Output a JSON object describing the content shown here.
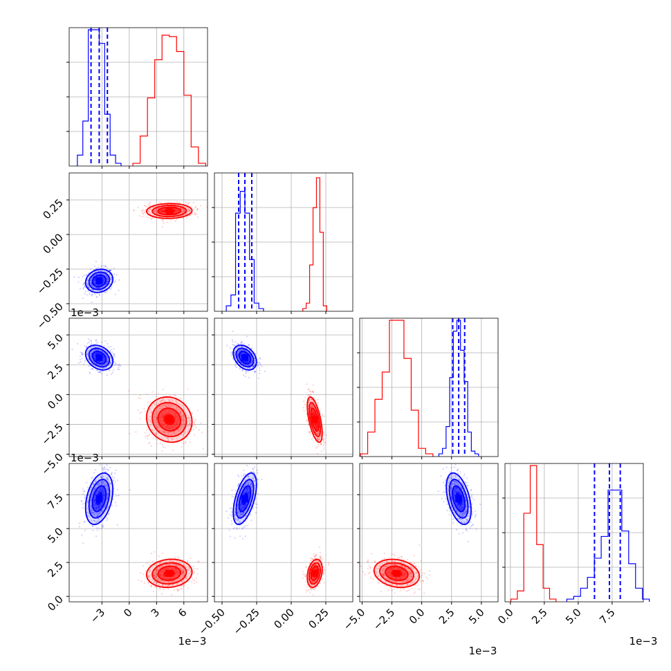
{
  "chart_data": {
    "type": "scatter",
    "kind": "corner-plot",
    "grid": true,
    "quantile_lines": "dashed",
    "series": [
      {
        "name": "",
        "color": "#0000ff",
        "role": "posterior-a"
      },
      {
        "name": "",
        "color": "#ff0000",
        "role": "posterior-b"
      }
    ],
    "parameters": [
      {
        "range": [
          -0.0066,
          0.0086
        ],
        "ticks": [
          -0.003,
          0,
          0.003,
          0.006
        ],
        "tick_labels": [
          "−3",
          "0",
          "3",
          "6"
        ],
        "multiplier_label": "1e−3"
      },
      {
        "range": [
          -0.555,
          0.445
        ],
        "ticks": [
          -0.5,
          -0.25,
          0,
          0.25
        ],
        "tick_labels": [
          "−0.50",
          "−0.25",
          "0.00",
          "0.25"
        ],
        "multiplier_label": ""
      },
      {
        "range": [
          -0.0052,
          0.0064
        ],
        "ticks": [
          -0.005,
          -0.0025,
          0,
          0.0025,
          0.005
        ],
        "tick_labels": [
          "−5.0",
          "−2.5",
          "0.0",
          "2.5",
          "5.0"
        ],
        "multiplier_label": "1e−3"
      },
      {
        "range": [
          -0.0004,
          0.0098
        ],
        "ticks": [
          0,
          0.0025,
          0.005,
          0.0075
        ],
        "tick_labels": [
          "0.0",
          "2.5",
          "5.0",
          "7.5"
        ],
        "multiplier_label": "1e−3"
      }
    ],
    "multiplier_labels_left": [
      "1e−3",
      "1e−3"
    ],
    "blue": {
      "mean": [
        -0.0033,
        -0.335,
        0.0031,
        0.0072
      ],
      "std": [
        0.00075,
        0.042,
        0.00052,
        0.00095
      ],
      "quantiles": [
        [
          -0.0042,
          -0.0033,
          -0.0024
        ],
        [
          -0.38,
          -0.335,
          -0.285
        ],
        [
          0.0026,
          0.0031,
          0.0036
        ],
        [
          0.0062,
          0.0073,
          0.0081
        ]
      ],
      "hist": [
        [
          0.08,
          0.33,
          1.0,
          1.0,
          0.9,
          0.38,
          0.08,
          0.02
        ],
        [
          0.04,
          0.12,
          0.72,
          0.88,
          0.72,
          0.38,
          0.06,
          0.02
        ],
        [
          0.02,
          0.06,
          0.22,
          0.58,
          0.92,
          1.0,
          0.78,
          0.55,
          0.18,
          0.04,
          0.02
        ],
        [
          0.02,
          0.04,
          0.1,
          0.18,
          0.32,
          0.48,
          0.82,
          0.82,
          0.52,
          0.28,
          0.1,
          0.02
        ]
      ]
    },
    "red": {
      "mean": [
        0.0044,
        0.17,
        -0.0021,
        0.0017
      ],
      "std": [
        0.00125,
        0.027,
        0.00095,
        0.00052
      ],
      "hist": [
        [
          0.02,
          0.22,
          0.5,
          0.78,
          0.96,
          0.95,
          0.84,
          0.52,
          0.14,
          0.02
        ],
        [
          0.02,
          0.06,
          0.34,
          0.76,
          0.98,
          0.58,
          0.04
        ],
        [
          0.02,
          0.18,
          0.42,
          0.62,
          1.0,
          1.0,
          0.72,
          0.34,
          0.06,
          0.02
        ],
        [
          0.02,
          0.08,
          0.65,
          1.0,
          0.42,
          0.1,
          0.02
        ]
      ]
    }
  }
}
